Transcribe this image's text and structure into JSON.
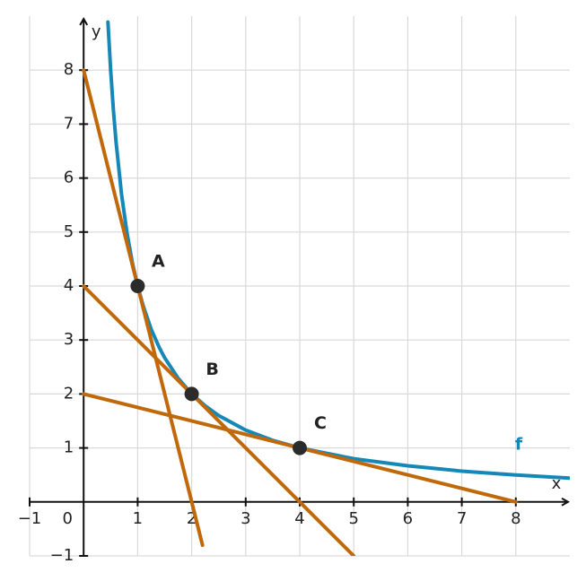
{
  "chart_data": {
    "type": "function-plot",
    "x_label": "x",
    "y_label": "y",
    "xlim": [
      -1,
      9
    ],
    "ylim": [
      -1,
      9
    ],
    "xticks": [
      {
        "value": -1,
        "label": "−1"
      },
      0,
      1,
      2,
      3,
      4,
      5,
      6,
      7,
      8
    ],
    "yticks": [
      {
        "value": -1,
        "label": "−1"
      },
      1,
      2,
      3,
      4,
      5,
      6,
      7,
      8
    ],
    "grid": true,
    "series": [
      {
        "name": "f",
        "color": "#1588b8",
        "x": [
          0.45,
          0.5,
          0.55,
          0.6,
          0.7,
          0.8,
          0.9,
          1,
          1.1,
          1.25,
          1.4,
          1.5,
          1.75,
          2,
          2.25,
          2.5,
          3,
          3.5,
          4,
          5,
          6,
          7,
          8,
          9
        ],
        "values": [
          8.89,
          8,
          7.27,
          6.67,
          5.71,
          5,
          4.44,
          4,
          3.64,
          3.2,
          2.86,
          2.67,
          2.29,
          2,
          1.78,
          1.6,
          1.33,
          1.14,
          1,
          0.8,
          0.67,
          0.57,
          0.5,
          0.44
        ]
      },
      {
        "color": "#c0690c",
        "x": [
          0,
          2.2
        ],
        "values": [
          8,
          -0.8
        ]
      },
      {
        "color": "#c0690c",
        "x": [
          0,
          5
        ],
        "values": [
          4,
          -1
        ]
      },
      {
        "color": "#c0690c",
        "x": [
          0,
          8
        ],
        "values": [
          2,
          0
        ]
      }
    ],
    "points": [
      {
        "label": "A",
        "x": 1,
        "y": 4
      },
      {
        "label": "B",
        "x": 2,
        "y": 2
      },
      {
        "label": "C",
        "x": 4,
        "y": 1
      }
    ],
    "point_color": "#2b2b2b"
  }
}
